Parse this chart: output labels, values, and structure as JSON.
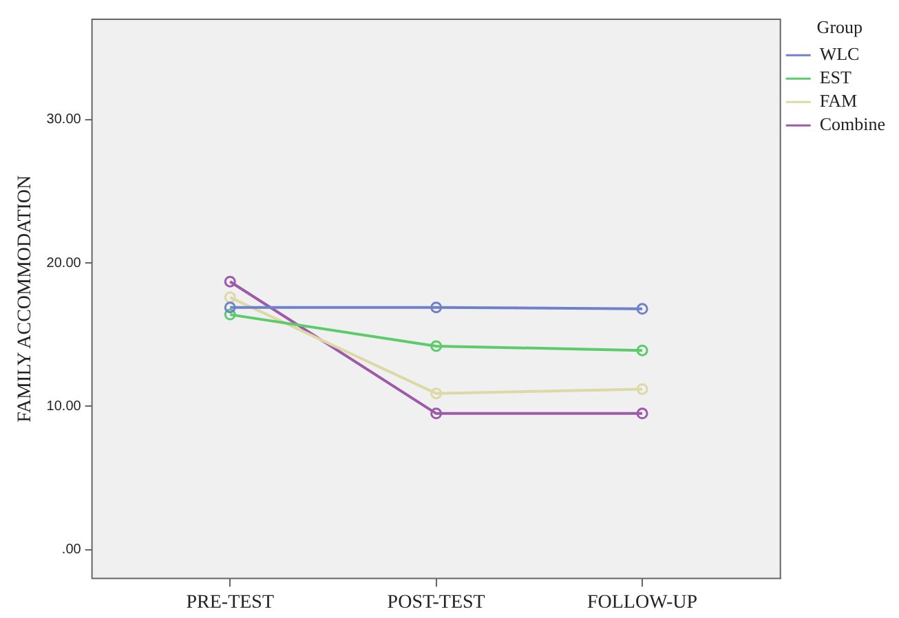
{
  "chart_data": {
    "type": "line",
    "xlabel": null,
    "ylabel": "FAMILY ACCOMMODATION",
    "legend_title": "Group",
    "categories": [
      "PRE-TEST",
      "POST-TEST",
      "FOLLOW-UP"
    ],
    "series": [
      {
        "name": "WLC",
        "color": "#6f82c9",
        "values": [
          16.9,
          16.9,
          16.8
        ]
      },
      {
        "name": "EST",
        "color": "#5ccb6c",
        "values": [
          16.4,
          14.2,
          13.9
        ]
      },
      {
        "name": "FAM",
        "color": "#ddd9a6",
        "values": [
          17.6,
          10.9,
          11.2
        ]
      },
      {
        "name": "Combine",
        "color": "#9d5aa9",
        "values": [
          18.7,
          9.5,
          9.5
        ]
      }
    ],
    "ylim": [
      -2,
      37
    ],
    "yticks": [
      {
        "value": 0,
        "label": ".00"
      },
      {
        "value": 10,
        "label": "10.00"
      },
      {
        "value": 20,
        "label": "20.00"
      },
      {
        "value": 30,
        "label": "30.00"
      }
    ],
    "legend": "top right",
    "marker": "circle",
    "line_style": "solid"
  }
}
